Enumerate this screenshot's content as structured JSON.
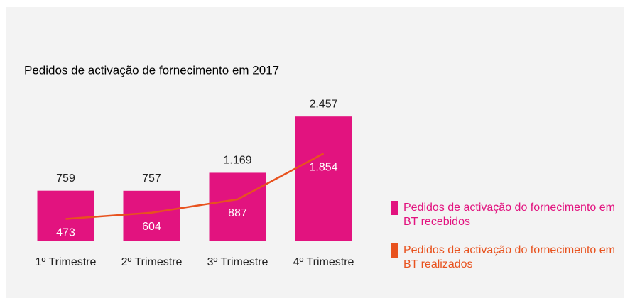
{
  "chart_data": {
    "type": "bar",
    "title": "Pedidos de activação de fornecimento em 2017",
    "categories": [
      "1º Trimestre",
      "2º Trimestre",
      "3º Trimestre",
      "4º Trimestre"
    ],
    "series": [
      {
        "name": "Pedidos de activação do fornecimento em BT recebidos",
        "type": "bar",
        "color": "#e2137f",
        "values": [
          759,
          757,
          1169,
          2457
        ],
        "value_labels": [
          "759",
          "757",
          "1.169",
          "2.457"
        ]
      },
      {
        "name": "Pedidos de activação do fornecimento em BT realizados",
        "type": "line",
        "color": "#e8521e",
        "axis": "y2",
        "values": [
          473,
          604,
          887,
          1854
        ],
        "value_labels": [
          "473",
          "604",
          "887",
          "1.854"
        ]
      }
    ],
    "ylim": [
      -400,
      2850
    ],
    "y2lim": [
      0,
      3000
    ]
  }
}
